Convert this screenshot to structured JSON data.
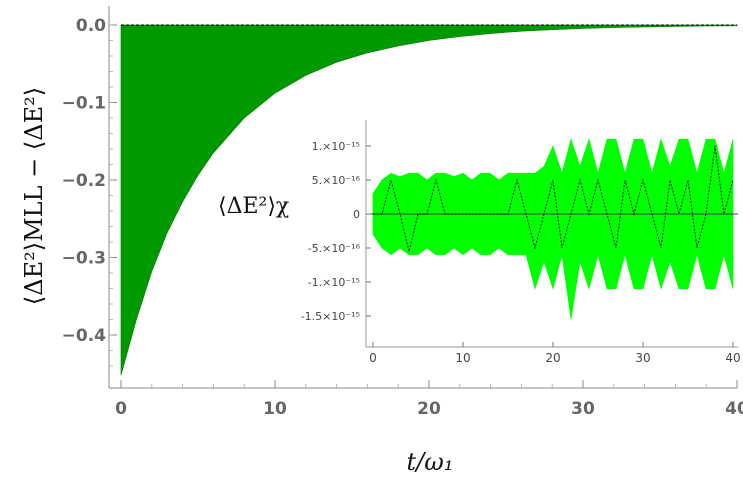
{
  "chart_data": [
    {
      "type": "area",
      "role": "main",
      "x": [
        0,
        1,
        2,
        3,
        4,
        5,
        6,
        8,
        10,
        12,
        14,
        16,
        18,
        20,
        22,
        24,
        26,
        28,
        30,
        32,
        34,
        36,
        38,
        40
      ],
      "series": [
        {
          "y": [
            -0.452,
            -0.38,
            -0.318,
            -0.268,
            -0.228,
            -0.194,
            -0.165,
            -0.12,
            -0.088,
            -0.065,
            -0.048,
            -0.036,
            -0.027,
            -0.02,
            -0.015,
            -0.011,
            -0.008,
            -0.006,
            -0.0045,
            -0.0034,
            -0.0025,
            -0.0018,
            -0.0013,
            -0.001
          ],
          "upper": 0,
          "color": "#009900"
        }
      ],
      "reference_line": {
        "y": 0,
        "style": "dashed",
        "color": "#000000"
      },
      "xlim": [
        0,
        40
      ],
      "ylim": [
        -0.47,
        0.01
      ],
      "xticks": [
        "0",
        "10",
        "20",
        "30",
        "40"
      ],
      "yticks": [
        "0.0",
        "-0.1",
        "-0.2",
        "-0.3",
        "-0.4"
      ],
      "xlabel": "t/ω₁",
      "ylabel": "⟨ΔE²⟩MLL − ⟨ΔE²⟩",
      "grid": false
    },
    {
      "type": "area",
      "role": "inset",
      "x": [
        0,
        1,
        2,
        3,
        4,
        5,
        6,
        7,
        8,
        9,
        10,
        11,
        12,
        13,
        14,
        15,
        16,
        17,
        18,
        19,
        20,
        21,
        22,
        23,
        24,
        25,
        26,
        27,
        28,
        29,
        30,
        31,
        32,
        33,
        34,
        35,
        36,
        37,
        38,
        39,
        40
      ],
      "series": [
        {
          "upper": [
            3e-16,
            5e-16,
            6e-16,
            5.5e-16,
            6e-16,
            6e-16,
            5e-16,
            6e-16,
            6e-16,
            5.5e-16,
            6e-16,
            5e-16,
            6e-16,
            6e-16,
            5e-16,
            6e-16,
            6e-16,
            6e-16,
            6e-16,
            7e-16,
            1e-15,
            6e-16,
            1.1e-15,
            7e-16,
            1.1e-15,
            6e-16,
            1.1e-15,
            1.1e-15,
            6e-16,
            1.1e-15,
            1.1e-15,
            6e-16,
            1.1e-15,
            7e-16,
            1.1e-15,
            1.1e-15,
            6e-16,
            1.1e-15,
            1.1e-15,
            6e-16,
            1.1e-15
          ],
          "lower": [
            -3e-16,
            -5e-16,
            -6e-16,
            -5e-16,
            -6e-16,
            -6e-16,
            -5e-16,
            -6e-16,
            -6e-16,
            -5e-16,
            -6e-16,
            -5e-16,
            -6e-16,
            -6e-16,
            -5e-16,
            -6e-16,
            -6e-16,
            -6e-16,
            -1.1e-15,
            -7e-16,
            -1.1e-15,
            -6e-16,
            -1.55e-15,
            -7e-16,
            -1.1e-15,
            -6e-16,
            -1.1e-15,
            -1.1e-15,
            -6e-16,
            -1.1e-15,
            -1.1e-15,
            -6e-16,
            -1.1e-15,
            -7e-16,
            -1.1e-15,
            -1.1e-15,
            -6e-16,
            -1.1e-15,
            -1.1e-15,
            -6e-16,
            -1.1e-15
          ],
          "color": "#00ff00"
        },
        {
          "y": [
            0,
            0,
            5e-16,
            0,
            -5.5e-16,
            0,
            0,
            5e-16,
            0,
            0,
            0,
            0,
            0,
            0,
            0,
            0,
            5e-16,
            0,
            -5e-16,
            0,
            5e-16,
            -5e-16,
            0,
            5e-16,
            0,
            5e-16,
            0,
            -5e-16,
            5e-16,
            0,
            5e-16,
            0,
            -5e-16,
            5e-16,
            0,
            5e-16,
            -5e-16,
            0,
            1e-15,
            0,
            5e-16
          ],
          "color": "#000000",
          "style": "dashed"
        }
      ],
      "xlim": [
        0,
        40
      ],
      "ylim": [
        -1.65e-15,
        1.2e-15
      ],
      "xticks": [
        "0",
        "10",
        "20",
        "30",
        "40"
      ],
      "yticks": [
        "1.×10⁻¹⁵",
        "5.×10⁻¹⁶",
        "0",
        "-5.×10⁻¹⁶",
        "-1.×10⁻¹⁵",
        "-1.5×10⁻¹⁵"
      ],
      "ylabel": "⟨ΔE²⟩χ",
      "grid": false
    }
  ]
}
